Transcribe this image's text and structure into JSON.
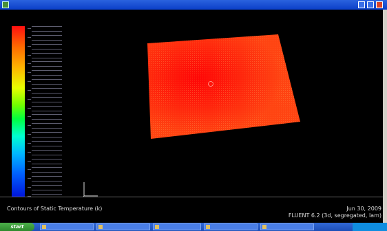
{
  "window": {
    "title": ""
  },
  "caption": "Contours of Static Temperature (k)",
  "date": "Jun 30, 2009",
  "solver": "FLUENT 6.2 (3d, segregated, lam)",
  "colors": {
    "surface_outer": "#ff3b0e",
    "surface_hot": "#ff0a0a",
    "background": "#000000"
  },
  "taskbar": {
    "start_label": "start",
    "tasks": [
      "",
      "",
      "",
      "",
      ""
    ],
    "clock": ""
  }
}
